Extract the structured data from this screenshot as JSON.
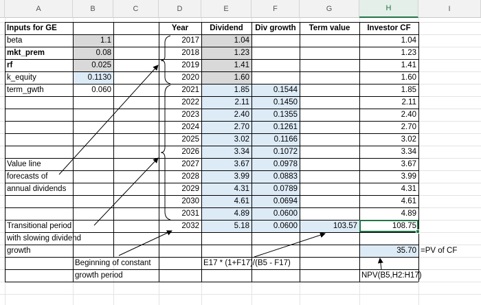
{
  "column_headers": [
    "A",
    "B",
    "C",
    "D",
    "E",
    "F",
    "G",
    "H",
    "I"
  ],
  "selected_column": "H",
  "inputs": {
    "heading": "Inputs for GE",
    "rows": [
      {
        "label": "beta",
        "value": "1.1",
        "label_bold": false
      },
      {
        "label": "mkt_prem",
        "value": "0.08",
        "label_bold": true
      },
      {
        "label": "rf",
        "value": "0.025",
        "label_bold": true
      },
      {
        "label": "k_equity",
        "value": "0.1130",
        "label_bold": false
      },
      {
        "label": "term_gwth",
        "value": "0.060",
        "label_bold": false
      }
    ]
  },
  "table": {
    "headers": {
      "year": "Year",
      "dividend": "Dividend",
      "div_growth": "Div growth",
      "term_value": "Term value",
      "investor_cf": "Investor CF"
    },
    "rows": [
      {
        "year": "2017",
        "dividend": "1.04",
        "growth": "",
        "term": "",
        "cf": "1.04"
      },
      {
        "year": "2018",
        "dividend": "1.23",
        "growth": "",
        "term": "",
        "cf": "1.23"
      },
      {
        "year": "2019",
        "dividend": "1.41",
        "growth": "",
        "term": "",
        "cf": "1.41"
      },
      {
        "year": "2020",
        "dividend": "1.60",
        "growth": "",
        "term": "",
        "cf": "1.60"
      },
      {
        "year": "2021",
        "dividend": "1.85",
        "growth": "0.1544",
        "term": "",
        "cf": "1.85"
      },
      {
        "year": "2022",
        "dividend": "2.11",
        "growth": "0.1450",
        "term": "",
        "cf": "2.11"
      },
      {
        "year": "2023",
        "dividend": "2.40",
        "growth": "0.1355",
        "term": "",
        "cf": "2.40"
      },
      {
        "year": "2024",
        "dividend": "2.70",
        "growth": "0.1261",
        "term": "",
        "cf": "2.70"
      },
      {
        "year": "2025",
        "dividend": "3.02",
        "growth": "0.1166",
        "term": "",
        "cf": "3.02"
      },
      {
        "year": "2026",
        "dividend": "3.34",
        "growth": "0.1072",
        "term": "",
        "cf": "3.34"
      },
      {
        "year": "2027",
        "dividend": "3.67",
        "growth": "0.0978",
        "term": "",
        "cf": "3.67"
      },
      {
        "year": "2028",
        "dividend": "3.99",
        "growth": "0.0883",
        "term": "",
        "cf": "3.99"
      },
      {
        "year": "2029",
        "dividend": "4.31",
        "growth": "0.0789",
        "term": "",
        "cf": "4.31"
      },
      {
        "year": "2030",
        "dividend": "4.61",
        "growth": "0.0694",
        "term": "",
        "cf": "4.61"
      },
      {
        "year": "2031",
        "dividend": "4.89",
        "growth": "0.0600",
        "term": "",
        "cf": "4.89"
      },
      {
        "year": "2032",
        "dividend": "5.18",
        "growth": "0.0600",
        "term": "103.57",
        "cf": "108.75"
      }
    ]
  },
  "annotations": {
    "value_line_1": "Value line",
    "value_line_2": "forecasts of",
    "value_line_3": "annual dividends",
    "transitional_1": "Transitional period",
    "transitional_2": "with slowing dividend",
    "transitional_3": "growth",
    "beginning_1": "Beginning of constant",
    "beginning_2": "growth period",
    "term_formula": "E17 * (1+F17)/(B5 - F17)",
    "npv_value": "35.70",
    "npv_label": "=PV of CF",
    "npv_formula": "NPV(B5,H2:H17)"
  },
  "colors": {
    "gray_fill": "#d9d9d9",
    "blue_fill": "#ddebf7",
    "selection_green": "#217346"
  }
}
